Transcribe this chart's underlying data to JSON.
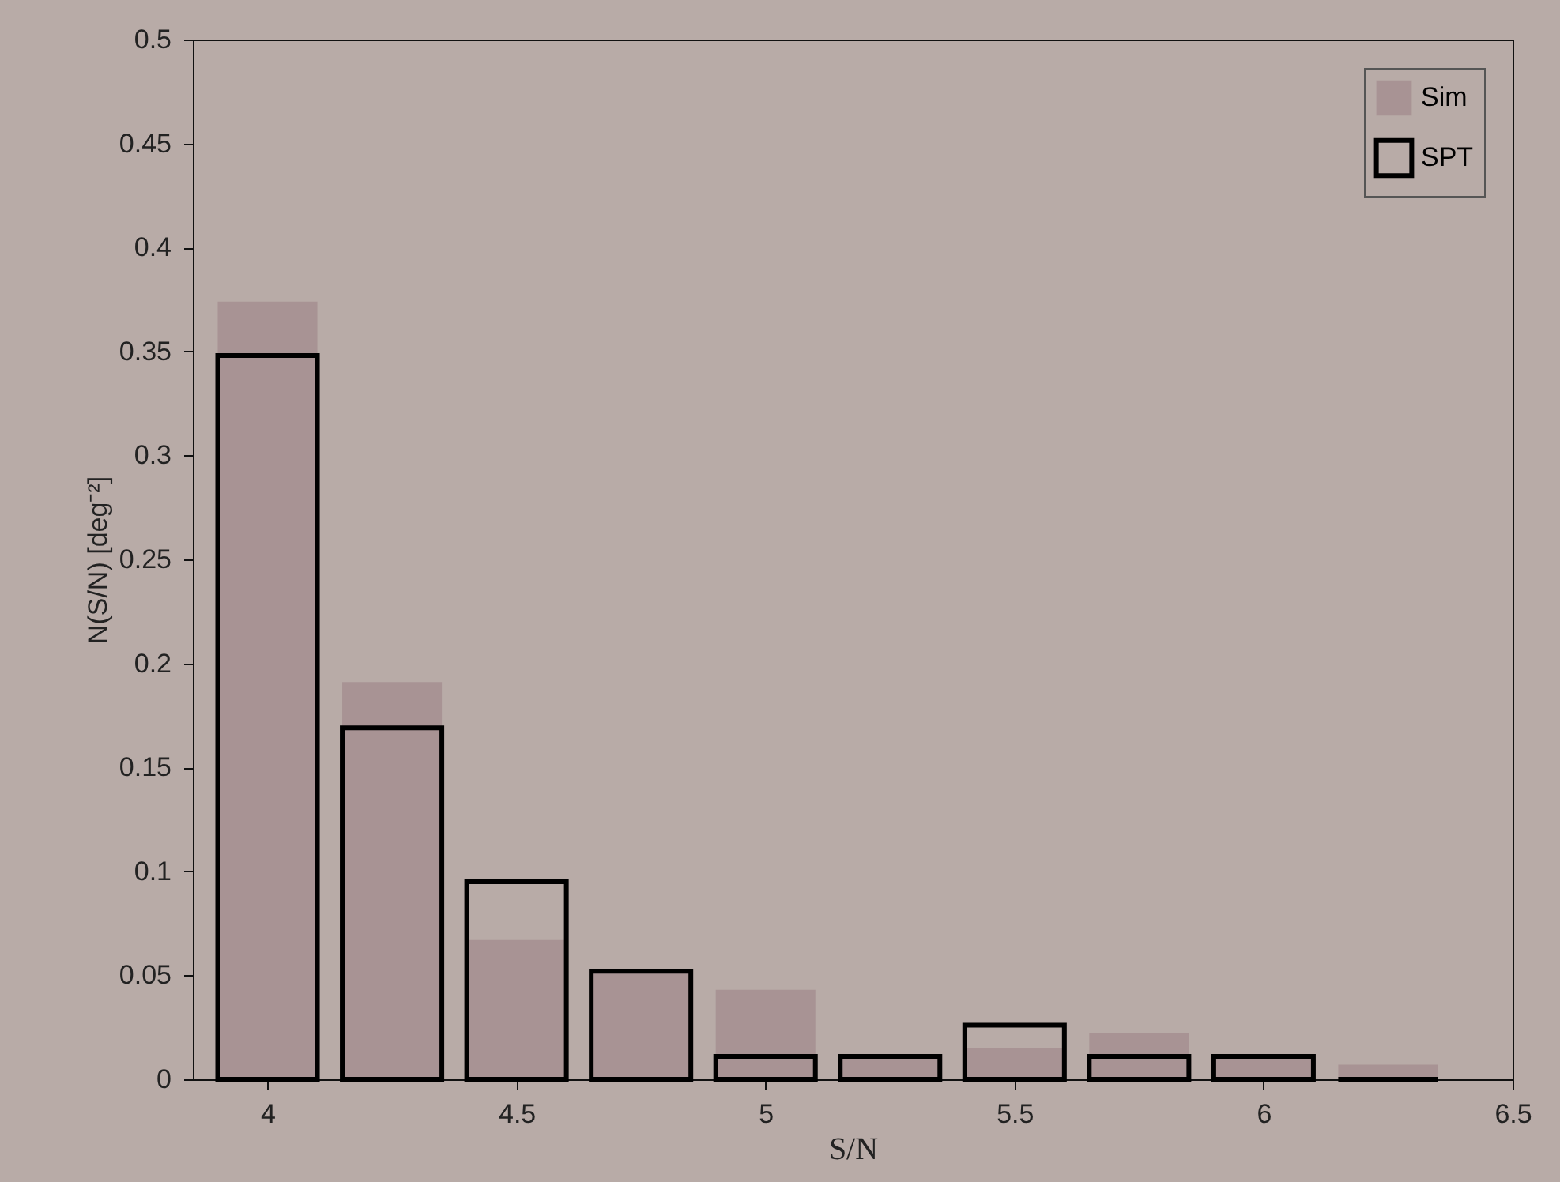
{
  "chart_data": {
    "type": "bar",
    "xlabel": "S/N",
    "ylabel": "N(S/N) [deg⁻²]",
    "x": [
      4,
      4.25,
      4.5,
      4.75,
      5,
      5.25,
      5.5,
      5.75,
      6,
      6.25
    ],
    "series": [
      {
        "name": "Sim",
        "color": "#a89394",
        "values": [
          0.374,
          0.191,
          0.067,
          0.053,
          0.043,
          0.01,
          0.015,
          0.022,
          0.01,
          0.007
        ]
      },
      {
        "name": "SPT",
        "color": "#000000",
        "values": [
          0.348,
          0.169,
          0.095,
          0.052,
          0.011,
          0.011,
          0.026,
          0.011,
          0.011,
          0
        ]
      }
    ],
    "xlim": [
      3.85,
      6.5
    ],
    "xticks": [
      4,
      4.5,
      5,
      5.5,
      6,
      6.5
    ],
    "ylim": [
      0,
      0.5
    ],
    "yticks": [
      0,
      0.05,
      0.1,
      0.15,
      0.2,
      0.25,
      0.3,
      0.35,
      0.4,
      0.45,
      0.5
    ],
    "grid": false,
    "legend": "top right"
  }
}
